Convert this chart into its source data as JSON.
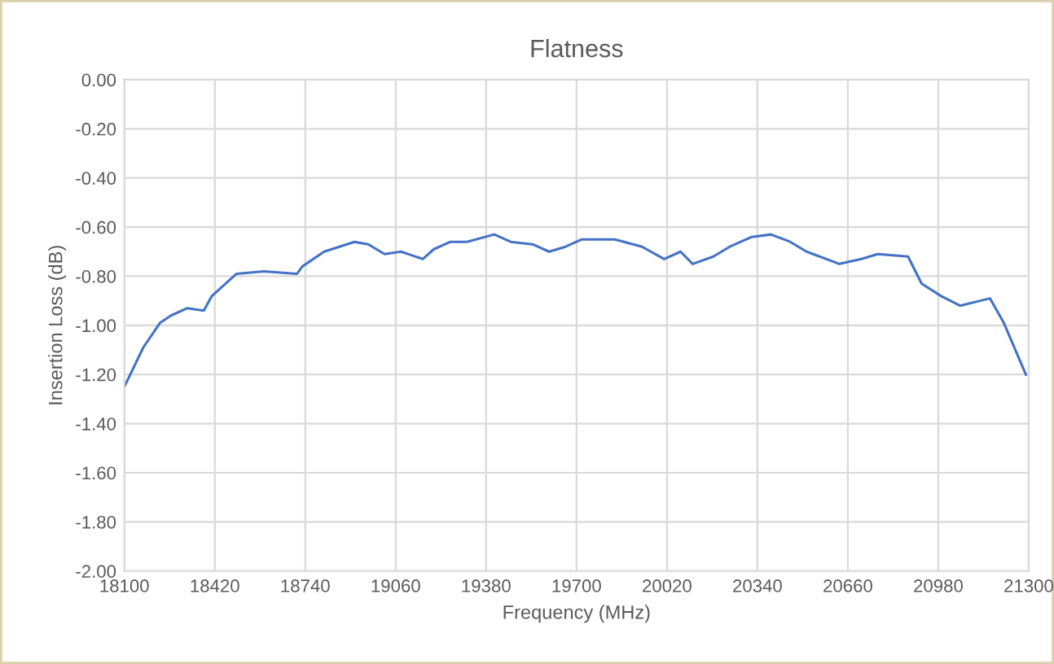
{
  "chart_data": {
    "type": "line",
    "title": "Flatness",
    "xlabel": "Frequency (MHz)",
    "ylabel": "Insertion Loss (dB)",
    "xlim": [
      18100,
      21300
    ],
    "xticks": [
      18100,
      18420,
      18740,
      19060,
      19380,
      19700,
      20020,
      20340,
      20660,
      20980,
      21300
    ],
    "ylim": [
      -2.0,
      0.0
    ],
    "yticks": [
      {
        "value": 0.0,
        "label": "0.00"
      },
      {
        "value": -0.2,
        "label": "-0.20"
      },
      {
        "value": -0.4,
        "label": "-0.40"
      },
      {
        "value": -0.6,
        "label": "-0.60"
      },
      {
        "value": -0.8,
        "label": "-0.80"
      },
      {
        "value": -1.0,
        "label": "-1.00"
      },
      {
        "value": -1.2,
        "label": "-1.20"
      },
      {
        "value": -1.4,
        "label": "-1.40"
      },
      {
        "value": -1.6,
        "label": "-1.60"
      },
      {
        "value": -1.8,
        "label": "-1.80"
      },
      {
        "value": -2.0,
        "label": "-2.00"
      }
    ],
    "grid": true,
    "series": [
      {
        "color": "#4472c4",
        "x": [
          18100,
          18167,
          18226,
          18265,
          18323,
          18381,
          18410,
          18497,
          18594,
          18711,
          18730,
          18807,
          18914,
          18963,
          19021,
          19079,
          19156,
          19195,
          19254,
          19312,
          19409,
          19467,
          19544,
          19603,
          19661,
          19719,
          19835,
          19932,
          20010,
          20068,
          20111,
          20184,
          20242,
          20320,
          20388,
          20456,
          20514,
          20630,
          20708,
          20766,
          20873,
          20921,
          20989,
          21057,
          21163,
          21212,
          21290
        ],
        "values": [
          -1.25,
          -1.09,
          -0.99,
          -0.96,
          -0.93,
          -0.94,
          -0.88,
          -0.79,
          -0.78,
          -0.79,
          -0.76,
          -0.7,
          -0.66,
          -0.67,
          -0.71,
          -0.7,
          -0.73,
          -0.69,
          -0.66,
          -0.66,
          -0.63,
          -0.66,
          -0.67,
          -0.7,
          -0.68,
          -0.65,
          -0.65,
          -0.68,
          -0.73,
          -0.7,
          -0.75,
          -0.72,
          -0.68,
          -0.64,
          -0.63,
          -0.66,
          -0.7,
          -0.75,
          -0.73,
          -0.71,
          -0.72,
          -0.83,
          -0.88,
          -0.92,
          -0.89,
          -0.99,
          -1.2
        ]
      }
    ]
  }
}
